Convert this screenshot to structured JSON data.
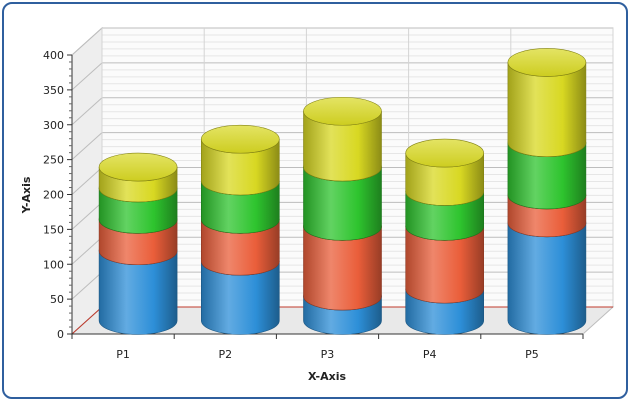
{
  "chart_data": {
    "type": "bar",
    "stacked": true,
    "style": "3d-cylinder",
    "title": "",
    "xlabel": "X-Axis",
    "ylabel": "Y-Axis",
    "ylim": [
      0,
      400
    ],
    "yticks": [
      0,
      50,
      100,
      150,
      200,
      250,
      300,
      350,
      400
    ],
    "grid": true,
    "legend": "none",
    "categories": [
      "P1",
      "P2",
      "P3",
      "P4",
      "P5"
    ],
    "series": [
      {
        "color": "#2d8fd8",
        "values": [
          100,
          85,
          35,
          45,
          140
        ]
      },
      {
        "color": "#ea5e3a",
        "values": [
          45,
          60,
          100,
          90,
          40
        ]
      },
      {
        "color": "#2ec42e",
        "values": [
          45,
          55,
          85,
          50,
          75
        ]
      },
      {
        "color": "#d8d822",
        "values": [
          30,
          60,
          80,
          55,
          115
        ]
      }
    ]
  }
}
